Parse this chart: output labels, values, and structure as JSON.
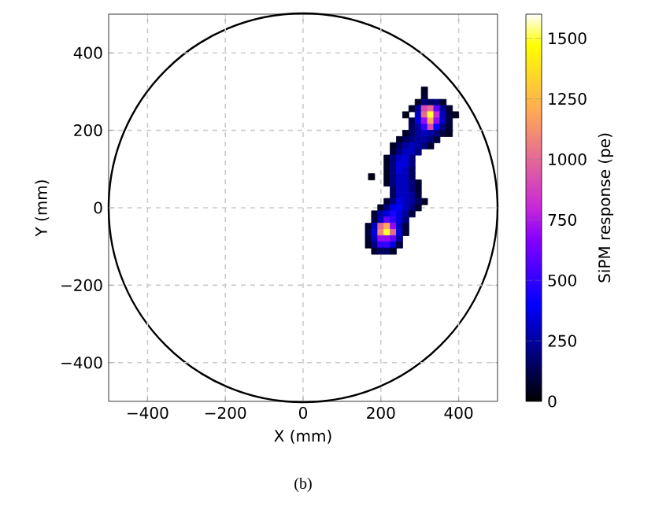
{
  "chart_data": {
    "type": "scatter",
    "xlabel": "X (mm)",
    "ylabel": "Y (mm)",
    "clabel": "SiPM response (pe)",
    "annotations": [
      "(b)"
    ],
    "marker": "square",
    "grid": true,
    "xlim": [
      -500,
      500
    ],
    "ylim": [
      -500,
      500
    ],
    "xticks": [
      {
        "value": -400,
        "label": "−400"
      },
      {
        "value": -200,
        "label": "−200"
      },
      0,
      200,
      400
    ],
    "yticks": [
      {
        "value": -400,
        "label": "−400"
      },
      {
        "value": -200,
        "label": "−200"
      },
      0,
      200,
      400
    ],
    "clim": [
      0,
      1600
    ],
    "cticks": [
      0,
      250,
      500,
      750,
      1000,
      1250,
      1500
    ],
    "x": [
      312,
      312,
      296,
      312,
      328,
      344,
      360,
      280,
      296,
      312,
      328,
      344,
      360,
      376,
      264,
      296,
      312,
      328,
      344,
      360,
      376,
      392,
      280,
      296,
      312,
      328,
      344,
      360,
      376,
      280,
      296,
      312,
      328,
      344,
      360,
      376,
      264,
      280,
      296,
      312,
      328,
      344,
      360,
      376,
      248,
      264,
      280,
      296,
      312,
      328,
      344,
      232,
      248,
      264,
      280,
      296,
      312,
      328,
      232,
      248,
      264,
      280,
      296,
      216,
      232,
      248,
      264,
      280,
      216,
      232,
      248,
      264,
      280,
      216,
      232,
      248,
      264,
      280,
      176,
      216,
      232,
      248,
      264,
      280,
      216,
      232,
      248,
      264,
      280,
      296,
      232,
      248,
      264,
      280,
      296,
      232,
      248,
      264,
      280,
      296,
      216,
      232,
      248,
      264,
      280,
      296,
      312,
      200,
      216,
      232,
      248,
      264,
      280,
      296,
      184,
      200,
      216,
      232,
      248,
      264,
      280,
      184,
      200,
      216,
      232,
      248,
      264,
      168,
      184,
      200,
      216,
      232,
      248,
      264,
      168,
      184,
      200,
      216,
      232,
      248,
      264,
      168,
      184,
      200,
      216,
      232,
      248,
      168,
      184,
      200,
      216,
      232,
      248,
      184,
      200,
      216,
      232
    ],
    "values": [
      304,
      288,
      272,
      272,
      272,
      272,
      272,
      256,
      256,
      256,
      256,
      256,
      256,
      256,
      240,
      240,
      240,
      240,
      240,
      240,
      240,
      240,
      224,
      224,
      224,
      224,
      224,
      224,
      224,
      208,
      208,
      208,
      208,
      208,
      208,
      208,
      192,
      192,
      192,
      192,
      192,
      192,
      192,
      192,
      176,
      176,
      176,
      176,
      176,
      176,
      176,
      160,
      160,
      160,
      160,
      160,
      160,
      160,
      144,
      144,
      144,
      144,
      144,
      128,
      128,
      128,
      128,
      128,
      112,
      112,
      112,
      112,
      112,
      96,
      96,
      96,
      96,
      96,
      80,
      80,
      80,
      80,
      80,
      80,
      64,
      64,
      64,
      64,
      64,
      64,
      48,
      48,
      48,
      48,
      48,
      32,
      32,
      32,
      32,
      32,
      16,
      16,
      16,
      16,
      16,
      16,
      16,
      0,
      0,
      0,
      0,
      0,
      0,
      0,
      -16,
      -16,
      -16,
      -16,
      -16,
      -16,
      -16,
      -32,
      -32,
      -32,
      -32,
      -32,
      -32,
      -48,
      -48,
      -48,
      -48,
      -48,
      -48,
      -48,
      -64,
      -64,
      -64,
      -64,
      -64,
      -64,
      -64,
      -80,
      -80,
      -80,
      -80,
      -80,
      -80,
      -96,
      -96,
      -96,
      -96,
      -96,
      -96,
      -112,
      -112,
      -112,
      -112
    ],
    "cvalues": [
      60,
      80,
      50,
      200,
      150,
      200,
      80,
      60,
      250,
      900,
      1000,
      600,
      250,
      80,
      40,
      300,
      1000,
      1500,
      800,
      300,
      100,
      50,
      100,
      350,
      700,
      1200,
      700,
      300,
      100,
      150,
      250,
      500,
      900,
      400,
      200,
      80,
      60,
      150,
      250,
      300,
      250,
      200,
      100,
      60,
      60,
      150,
      200,
      250,
      250,
      200,
      100,
      60,
      150,
      250,
      300,
      250,
      200,
      80,
      80,
      200,
      300,
      300,
      200,
      60,
      200,
      300,
      350,
      200,
      60,
      200,
      350,
      350,
      200,
      60,
      200,
      350,
      300,
      150,
      40,
      60,
      200,
      300,
      300,
      150,
      60,
      200,
      300,
      300,
      200,
      80,
      150,
      300,
      300,
      200,
      80,
      150,
      300,
      300,
      250,
      100,
      80,
      200,
      350,
      300,
      250,
      150,
      60,
      60,
      200,
      350,
      400,
      300,
      200,
      80,
      80,
      250,
      350,
      450,
      350,
      250,
      100,
      100,
      300,
      600,
      500,
      350,
      200,
      80,
      300,
      1000,
      1200,
      700,
      300,
      100,
      100,
      350,
      1100,
      1500,
      1000,
      350,
      80,
      80,
      300,
      700,
      700,
      600,
      250,
      60,
      200,
      500,
      500,
      350,
      100,
      80,
      150,
      150,
      80
    ]
  }
}
